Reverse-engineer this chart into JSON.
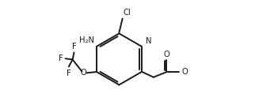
{
  "line_color": "#1a1a1a",
  "bg_color": "#ffffff",
  "line_width": 1.4,
  "font_size": 7.2,
  "figsize": [
    3.22,
    1.38
  ],
  "dpi": 100,
  "xlim": [
    -1.0,
    9.5
  ],
  "ylim": [
    1.2,
    7.0
  ]
}
